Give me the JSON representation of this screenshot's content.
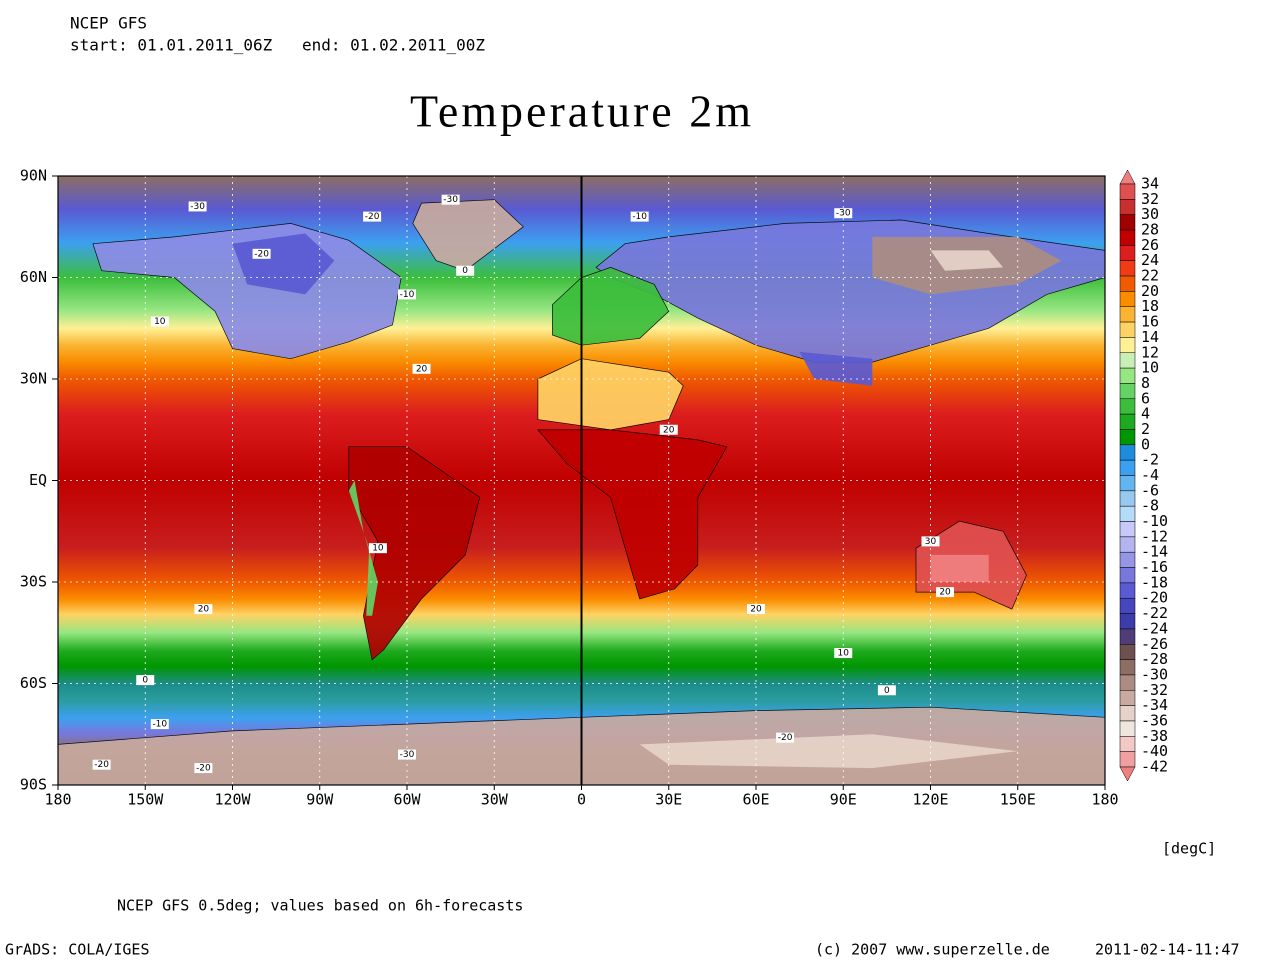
{
  "header": {
    "model": "NCEP GFS",
    "start": "start: 01.01.2011_06Z",
    "end": "end: 01.02.2011_00Z"
  },
  "title": "Temperature 2m",
  "map": {
    "lat_labels": [
      "90N",
      "60N",
      "30N",
      "EQ",
      "30S",
      "60S",
      "90S"
    ],
    "lon_labels": [
      "180",
      "150W",
      "120W",
      "90W",
      "60W",
      "30W",
      "0",
      "30E",
      "60E",
      "90E",
      "120E",
      "150E",
      "180"
    ],
    "contour_labels": [
      -30,
      -30,
      -20,
      -20,
      -10,
      -10,
      0,
      10,
      20,
      20,
      20,
      20,
      10,
      0,
      0,
      -10,
      -20,
      -30,
      -20,
      30,
      20,
      10,
      -30,
      -20
    ]
  },
  "colorbar": {
    "levels": [
      34,
      32,
      30,
      28,
      26,
      24,
      22,
      20,
      18,
      16,
      14,
      12,
      10,
      8,
      6,
      4,
      2,
      0,
      -2,
      -4,
      -6,
      -8,
      -10,
      -12,
      -14,
      -16,
      -18,
      -20,
      -22,
      -24,
      -26,
      -28,
      -30,
      -32,
      -34,
      -36,
      -38,
      -40,
      -42
    ],
    "colors": [
      "#f08080",
      "#e05050",
      "#c83030",
      "#a00000",
      "#c00000",
      "#dc1e1e",
      "#f03c14",
      "#f05a00",
      "#fa8c00",
      "#fab432",
      "#ffd264",
      "#fff096",
      "#c8f0b4",
      "#96e682",
      "#64d264",
      "#3cbe3c",
      "#1eaa1e",
      "#009600",
      "#1e8cdc",
      "#3ca0f0",
      "#64b4f0",
      "#96c8f0",
      "#b4dcfa",
      "#c8c8fa",
      "#b4b4f0",
      "#9696e6",
      "#7878dc",
      "#5a5ad2",
      "#4646be",
      "#3c3caa",
      "#503c78",
      "#6e5050",
      "#8c6e64",
      "#aa8c82",
      "#c8aaa0",
      "#e6d2c8",
      "#f0e6e0",
      "#f5c8c8",
      "#f0a0a0",
      "#f08080"
    ],
    "unit": "[degC]"
  },
  "footer": {
    "note": "NCEP GFS 0.5deg; values based on 6h-forecasts",
    "software": "GrADS: COLA/IGES",
    "copyright": "(c) 2007 www.superzelle.de",
    "timestamp": "2011-02-14-11:47"
  }
}
